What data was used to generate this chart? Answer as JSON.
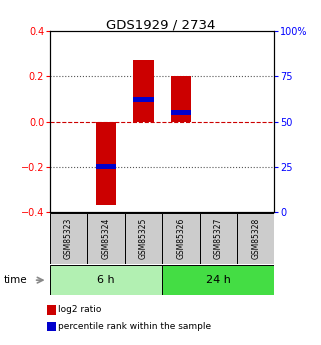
{
  "title": "GDS1929 / 2734",
  "samples": [
    "GSM85323",
    "GSM85324",
    "GSM85325",
    "GSM85326",
    "GSM85327",
    "GSM85328"
  ],
  "log2_ratio": [
    0.0,
    -0.37,
    0.27,
    0.2,
    0.0,
    0.0
  ],
  "percentile_rank": [
    null,
    25,
    62,
    55,
    null,
    null
  ],
  "groups": [
    {
      "label": "6 h",
      "samples": [
        0,
        1,
        2
      ],
      "color": "#b2f0b2"
    },
    {
      "label": "24 h",
      "samples": [
        3,
        4,
        5
      ],
      "color": "#44dd44"
    }
  ],
  "ylim": [
    -0.4,
    0.4
  ],
  "y2lim": [
    0,
    100
  ],
  "yticks": [
    -0.4,
    -0.2,
    0.0,
    0.2,
    0.4
  ],
  "y2ticks": [
    0,
    25,
    50,
    75,
    100
  ],
  "bar_color": "#cc0000",
  "pct_color": "#0000cc",
  "zero_line_color": "#cc0000",
  "dotted_color": "#555555",
  "bg_color": "#ffffff",
  "sample_box_color": "#cccccc",
  "bar_width": 0.55,
  "pct_bar_height": 0.022,
  "legend_items": [
    {
      "label": "log2 ratio",
      "color": "#cc0000"
    },
    {
      "label": "percentile rank within the sample",
      "color": "#0000cc"
    }
  ]
}
